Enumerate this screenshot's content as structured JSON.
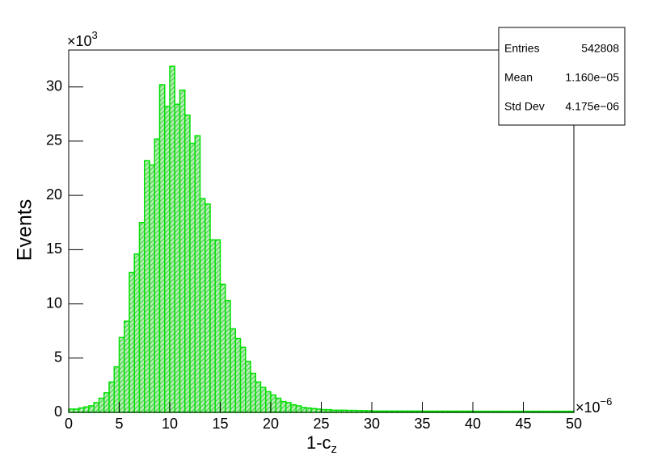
{
  "chart_data": {
    "type": "histogram",
    "ylabel": "Events",
    "xlabel": {
      "text": "1-c",
      "subscript": "z"
    },
    "x_multiplier": {
      "base": "×10",
      "exponent": "−6"
    },
    "y_multiplier": {
      "base": "×10",
      "exponent": "3"
    },
    "bins": [
      0,
      0.5,
      1,
      1.5,
      2,
      2.5,
      3,
      3.5,
      4,
      4.5,
      5,
      5.5,
      6,
      6.5,
      7,
      7.5,
      8,
      8.5,
      9,
      9.5,
      10,
      10.5,
      11,
      11.5,
      12,
      12.5,
      13,
      13.5,
      14,
      14.5,
      15,
      15.5,
      16,
      16.5,
      17,
      17.5,
      18,
      18.5,
      19,
      19.5,
      20,
      20.5,
      21,
      21.5,
      22,
      22.5,
      23,
      23.5,
      24,
      24.5,
      25,
      25.5,
      26,
      26.5,
      27,
      27.5,
      28,
      28.5,
      29,
      29.5,
      30,
      30.5,
      31,
      31.5,
      32,
      32.5,
      33,
      33.5,
      34,
      34.5,
      35,
      35.5,
      36,
      36.5,
      37,
      37.5,
      38,
      38.5,
      39,
      39.5,
      40,
      40.5,
      41,
      41.5,
      42,
      42.5,
      43,
      43.5,
      44,
      44.5,
      45,
      45.5,
      46,
      46.5,
      47,
      47.5,
      48,
      48.5,
      49,
      49.5,
      50
    ],
    "values": [
      0.3,
      0.3,
      0.4,
      0.5,
      0.6,
      0.9,
      1.3,
      1.8,
      2.8,
      4.2,
      6.9,
      8.4,
      12.9,
      14.6,
      17.5,
      23.2,
      22.8,
      25.2,
      30.2,
      28.2,
      31.9,
      28.4,
      29.7,
      27.4,
      24.8,
      25.5,
      19.7,
      19.2,
      15.9,
      15.9,
      11.8,
      10.3,
      7.7,
      6.8,
      6.0,
      4.7,
      3.6,
      2.8,
      2.3,
      1.9,
      1.6,
      1.3,
      1.0,
      0.9,
      0.7,
      0.6,
      0.45,
      0.4,
      0.35,
      0.3,
      0.25,
      0.25,
      0.2,
      0.2,
      0.2,
      0.18,
      0.18,
      0.17,
      0.16,
      0.15,
      0.12,
      0.12,
      0.12,
      0.12,
      0.12,
      0.12,
      0.12,
      0.12,
      0.12,
      0.12,
      0.11,
      0.11,
      0.11,
      0.11,
      0.11,
      0.11,
      0.11,
      0.11,
      0.11,
      0.11,
      0.1,
      0.1,
      0.1,
      0.1,
      0.1,
      0.1,
      0.1,
      0.1,
      0.1,
      0.1,
      0.1,
      0.1,
      0.1,
      0.1,
      0.1,
      0.1,
      0.1,
      0.1,
      0.1,
      0.1
    ],
    "color": "#00e000",
    "xlim": [
      0,
      50
    ],
    "xticks": [
      0,
      5,
      10,
      15,
      20,
      25,
      30,
      35,
      40,
      45,
      50
    ],
    "ylim": [
      0,
      33.4
    ],
    "yticks": [
      0,
      5,
      10,
      15,
      20,
      25,
      30
    ]
  },
  "stats": {
    "rows": [
      [
        "Entries",
        "542808"
      ],
      [
        "Mean",
        "1.160e−05"
      ],
      [
        "Std Dev",
        "4.175e−06"
      ]
    ]
  }
}
